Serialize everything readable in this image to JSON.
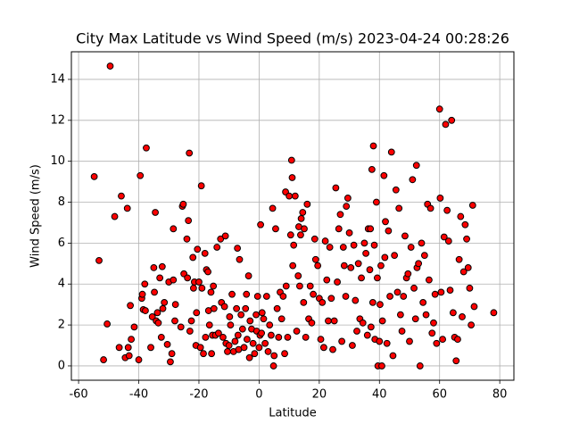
{
  "chart_data": {
    "type": "scatter",
    "title": "City Max Latitude vs Wind Speed (m/s) 2023-04-24 00:28:26",
    "x_label": "Latitude",
    "y_label": "Wind Speed (m/s)",
    "marker_color": "#ff0000",
    "marker_edge_color": "#000000",
    "grid": true,
    "xlim": [
      -62.4,
      84.7
    ],
    "ylim": [
      -0.7,
      15.35
    ],
    "xticks": [
      -60,
      -40,
      -20,
      0,
      20,
      40,
      60,
      80
    ],
    "yticks": [
      0,
      2,
      4,
      6,
      8,
      10,
      12,
      14
    ],
    "x": [
      -54.8,
      -53.2,
      -51.7,
      -50.5,
      -49.5,
      -48,
      -46.5,
      -45.8,
      -44.5,
      -43.8,
      -43.5,
      -43.2,
      -42.8,
      -42.5,
      -41.5,
      -40,
      -39.5,
      -39,
      -38.8,
      -38.5,
      -38,
      -37.5,
      -37.8,
      -36,
      -35.5,
      -35,
      -34.8,
      -34.5,
      -34.2,
      -33.8,
      -33.5,
      -33,
      -32.5,
      -32.2,
      -32,
      -31.5,
      -30.5,
      -30,
      -29.5,
      -29,
      -28.5,
      -28.5,
      -28,
      -27.8,
      -26,
      -25.5,
      -25.2,
      -25,
      -24,
      -23.8,
      -23.5,
      -23.2,
      -23,
      -22.5,
      -22,
      -21.8,
      -21.5,
      -21,
      -20.8,
      -20.5,
      -20,
      -19.5,
      -19.2,
      -19,
      -18.5,
      -18,
      -17.8,
      -17.5,
      -17,
      -16.8,
      -16.5,
      -16,
      -15.8,
      -15.5,
      -15.2,
      -15,
      -14.5,
      -14,
      -13.5,
      -12.8,
      -12.5,
      -12,
      -11.5,
      -11.2,
      -11,
      -10.5,
      -10,
      -9.8,
      -9.5,
      -9,
      -8.5,
      -8,
      -7.5,
      -7.2,
      -7,
      -6.8,
      -6.5,
      -6,
      -5.5,
      -5,
      -4.5,
      -4.2,
      -4,
      -3.5,
      -3.2,
      -3,
      -2.5,
      -2,
      -1.5,
      -1,
      -0.8,
      -0.5,
      0,
      0.3,
      0.5,
      0.8,
      1,
      1.5,
      2,
      2.5,
      3,
      3.5,
      4,
      4.5,
      4.8,
      5,
      5.5,
      6,
      6.5,
      7,
      7.5,
      8,
      8.5,
      8.8,
      9,
      9.5,
      10,
      10.5,
      10.8,
      11,
      11.2,
      11.5,
      12,
      12.5,
      13,
      13.2,
      13.5,
      13.8,
      14,
      14.5,
      14.8,
      15,
      15.5,
      16,
      16.5,
      17,
      17.5,
      18,
      18.5,
      18.8,
      19.5,
      20,
      20.5,
      21,
      21.5,
      22,
      22.5,
      23,
      23.5,
      24,
      24.5,
      25,
      25.5,
      26,
      26.5,
      27,
      27.5,
      28,
      28.3,
      28.8,
      29,
      29.5,
      30,
      30.5,
      31,
      31.5,
      32,
      32.5,
      33,
      33.5,
      34,
      34.5,
      35,
      35.5,
      36,
      36.3,
      36.8,
      37,
      37.2,
      37.5,
      37.8,
      38,
      38.3,
      38.5,
      39,
      39.3,
      39.5,
      40,
      40.2,
      40.5,
      40.8,
      41,
      41.5,
      41.8,
      42,
      42.5,
      43,
      43.5,
      44,
      44.5,
      45,
      45.5,
      46,
      46.5,
      47,
      47.5,
      48,
      48.5,
      49,
      49.5,
      50,
      50.5,
      51,
      51.5,
      52,
      52.3,
      52.5,
      53,
      53.5,
      54,
      54.5,
      55,
      55.5,
      56,
      56.5,
      57,
      57.5,
      58,
      58.5,
      59,
      60,
      60.2,
      60.5,
      61,
      61.5,
      62,
      62.5,
      63,
      63.5,
      64,
      64.5,
      65,
      65.5,
      66,
      66.5,
      67,
      67.5,
      68,
      68.5,
      69,
      69.5,
      70,
      70.5,
      71,
      71.5,
      78
    ],
    "values": [
      9.25,
      5.15,
      0.3,
      2.05,
      14.65,
      7.3,
      0.9,
      8.3,
      0.4,
      7.7,
      0.9,
      0.5,
      2.95,
      1.3,
      1.9,
      0.3,
      9.3,
      3.3,
      3.5,
      2.75,
      4,
      10.65,
      2.7,
      0.9,
      2.4,
      4.8,
      3.6,
      7.5,
      2.2,
      2.6,
      2.1,
      4.3,
      1.4,
      4.85,
      2.8,
      3.1,
      1.05,
      4.1,
      0.2,
      0.6,
      6.7,
      4.2,
      2.2,
      3,
      1.9,
      7.8,
      7.9,
      4.5,
      6.2,
      4.3,
      7.1,
      10.4,
      1.7,
      2.2,
      5.3,
      3.8,
      4.1,
      1,
      2.6,
      5.7,
      4.1,
      0.9,
      8.8,
      3.8,
      0.6,
      5.5,
      1.4,
      4.7,
      4.6,
      2.7,
      2,
      3.6,
      0.6,
      1.5,
      3.9,
      2.8,
      1.5,
      5.8,
      1.6,
      6.2,
      3.1,
      1.4,
      2.9,
      6.35,
      1.1,
      0.7,
      1,
      2.4,
      2,
      3.5,
      0.7,
      1.2,
      2.8,
      5.75,
      1.5,
      0.8,
      5.2,
      2.5,
      1.8,
      0.9,
      2.8,
      3.5,
      1.3,
      4.4,
      0.4,
      2.2,
      1.8,
      1.1,
      0.6,
      2.5,
      1.7,
      3.4,
      0.9,
      1.5,
      6.9,
      1.6,
      2.6,
      2.3,
      1.1,
      3.4,
      0.7,
      2,
      1.5,
      7.7,
      0,
      0.5,
      6.7,
      2.8,
      1.4,
      3.6,
      2.3,
      3.4,
      0.6,
      8.5,
      3.9,
      1.4,
      8.3,
      6.4,
      10.05,
      9.2,
      4.9,
      5.9,
      8.3,
      1.7,
      4.4,
      6.8,
      3.9,
      6.4,
      7.2,
      7.5,
      3.1,
      6.7,
      1.4,
      7.9,
      2.3,
      3.9,
      2.1,
      3.5,
      6.2,
      5.2,
      4.9,
      3.3,
      1.3,
      3.1,
      0.9,
      6.1,
      4.2,
      2.2,
      5.8,
      3.3,
      0.8,
      2.2,
      8.7,
      4.1,
      6.7,
      7.4,
      1.2,
      5.8,
      4.9,
      3.4,
      7.8,
      8.2,
      6.5,
      4.8,
      1,
      5.9,
      3.2,
      1.7,
      5,
      2.3,
      4.3,
      2.1,
      6,
      5.5,
      1.5,
      6.7,
      4.7,
      6.7,
      1.9,
      9.6,
      3.1,
      10.75,
      5.9,
      1.3,
      8,
      4.3,
      0,
      1.2,
      3,
      4.9,
      0,
      2.2,
      9.3,
      5.3,
      7.05,
      1.1,
      6.6,
      3.4,
      10.45,
      0.5,
      5.4,
      8.6,
      3.6,
      7.7,
      2.5,
      1.7,
      3.4,
      6.35,
      4.3,
      4.5,
      1.2,
      5.8,
      9.1,
      3.8,
      2.3,
      9.8,
      4.8,
      5,
      0,
      6,
      3.1,
      5.4,
      2.5,
      7.9,
      4.2,
      7.7,
      1.6,
      2.1,
      3.5,
      1.1,
      12.55,
      8.2,
      3.6,
      1.3,
      6.3,
      11.8,
      7.6,
      6.1,
      3.7,
      12,
      2.6,
      1.4,
      0.25,
      1.3,
      5.2,
      7.3,
      2.4,
      4.6,
      6.9,
      6.2,
      4.8,
      3.8,
      2,
      7.85,
      2.9,
      2.6
    ]
  }
}
